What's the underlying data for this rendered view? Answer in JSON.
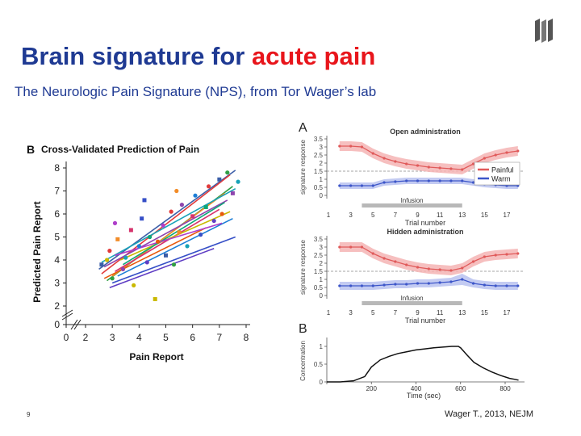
{
  "slide": {
    "title_main": "Brain signature for ",
    "title_accent": "acute pain",
    "subtitle": "The Neurologic Pain Signature (NPS), from Tor Wager’s lab",
    "page_number": "9",
    "citation": "Wager T., 2013, NEJM",
    "colors": {
      "title": "#1f3a93",
      "accent": "#e8151b"
    },
    "logo_icon": "university-logo-icon"
  },
  "chart_data": [
    {
      "id": "B",
      "type": "scatter",
      "panel_label": "B",
      "title": "Cross-Validated Prediction of Pain",
      "xlabel": "Pain Report",
      "ylabel": "Predicted Pain Report",
      "x_ticks": [
        "0",
        "2",
        "3",
        "4",
        "5",
        "6",
        "7",
        "8"
      ],
      "y_ticks": [
        "0",
        "2",
        "3",
        "4",
        "5",
        "6",
        "7",
        "8"
      ],
      "xlim": [
        2,
        8
      ],
      "ylim": [
        2,
        8
      ],
      "axis_break": true,
      "grid": false,
      "fit_lines": [
        {
          "color": "#3b5ea8",
          "x": [
            2.5,
            7.6
          ],
          "y": [
            3.6,
            7.9
          ]
        },
        {
          "color": "#e23a3a",
          "x": [
            2.6,
            7.4
          ],
          "y": [
            3.4,
            7.7
          ]
        },
        {
          "color": "#2f9e44",
          "x": [
            2.8,
            7.5
          ],
          "y": [
            3.1,
            7.2
          ]
        },
        {
          "color": "#f28c28",
          "x": [
            3.0,
            7.2
          ],
          "y": [
            3.3,
            6.9
          ]
        },
        {
          "color": "#8e44ad",
          "x": [
            2.7,
            7.3
          ],
          "y": [
            3.7,
            6.6
          ]
        },
        {
          "color": "#17a2b8",
          "x": [
            2.6,
            7.6
          ],
          "y": [
            3.9,
            7.1
          ]
        },
        {
          "color": "#d6336c",
          "x": [
            3.1,
            7.0
          ],
          "y": [
            3.5,
            6.2
          ]
        },
        {
          "color": "#c9b800",
          "x": [
            3.3,
            7.4
          ],
          "y": [
            4.0,
            6.1
          ]
        },
        {
          "color": "#1c7ed6",
          "x": [
            3.2,
            7.5
          ],
          "y": [
            3.3,
            5.8
          ]
        },
        {
          "color": "#364fc7",
          "x": [
            3.0,
            7.6
          ],
          "y": [
            3.0,
            5.0
          ]
        },
        {
          "color": "#5f3dc4",
          "x": [
            2.9,
            6.8
          ],
          "y": [
            2.8,
            4.5
          ]
        },
        {
          "color": "#0ca678",
          "x": [
            3.4,
            7.2
          ],
          "y": [
            3.8,
            6.5
          ]
        },
        {
          "color": "#e8590c",
          "x": [
            2.7,
            6.5
          ],
          "y": [
            3.2,
            5.4
          ]
        },
        {
          "color": "#ae3ec9",
          "x": [
            3.1,
            7.1
          ],
          "y": [
            4.2,
            5.6
          ]
        }
      ],
      "points": [
        {
          "x": 2.6,
          "y": 3.8,
          "color": "#3b5ea8"
        },
        {
          "x": 2.9,
          "y": 4.4,
          "color": "#e23a3a"
        },
        {
          "x": 3.0,
          "y": 3.2,
          "color": "#2f9e44"
        },
        {
          "x": 3.2,
          "y": 4.9,
          "color": "#f28c28"
        },
        {
          "x": 3.4,
          "y": 3.6,
          "color": "#8e44ad"
        },
        {
          "x": 3.5,
          "y": 4.1,
          "color": "#17a2b8"
        },
        {
          "x": 3.7,
          "y": 5.3,
          "color": "#d6336c"
        },
        {
          "x": 3.8,
          "y": 2.9,
          "color": "#c9b800"
        },
        {
          "x": 4.0,
          "y": 4.6,
          "color": "#1c7ed6"
        },
        {
          "x": 4.1,
          "y": 5.8,
          "color": "#364fc7"
        },
        {
          "x": 4.3,
          "y": 3.9,
          "color": "#5f3dc4"
        },
        {
          "x": 4.4,
          "y": 5.0,
          "color": "#0ca678"
        },
        {
          "x": 4.6,
          "y": 2.3,
          "color": "#c9b800"
        },
        {
          "x": 4.7,
          "y": 4.8,
          "color": "#e8590c"
        },
        {
          "x": 4.9,
          "y": 5.5,
          "color": "#ae3ec9"
        },
        {
          "x": 5.0,
          "y": 4.2,
          "color": "#3b5ea8"
        },
        {
          "x": 5.2,
          "y": 6.1,
          "color": "#e23a3a"
        },
        {
          "x": 5.3,
          "y": 3.8,
          "color": "#2f9e44"
        },
        {
          "x": 5.5,
          "y": 5.2,
          "color": "#f28c28"
        },
        {
          "x": 5.6,
          "y": 6.4,
          "color": "#8e44ad"
        },
        {
          "x": 5.8,
          "y": 4.6,
          "color": "#17a2b8"
        },
        {
          "x": 6.0,
          "y": 5.9,
          "color": "#d6336c"
        },
        {
          "x": 6.1,
          "y": 6.8,
          "color": "#1c7ed6"
        },
        {
          "x": 6.3,
          "y": 5.1,
          "color": "#364fc7"
        },
        {
          "x": 6.5,
          "y": 6.3,
          "color": "#0ca678"
        },
        {
          "x": 6.6,
          "y": 7.2,
          "color": "#e23a3a"
        },
        {
          "x": 6.8,
          "y": 5.7,
          "color": "#5f3dc4"
        },
        {
          "x": 7.0,
          "y": 7.5,
          "color": "#3b5ea8"
        },
        {
          "x": 7.1,
          "y": 6.0,
          "color": "#e8590c"
        },
        {
          "x": 7.3,
          "y": 7.8,
          "color": "#2f9e44"
        },
        {
          "x": 7.5,
          "y": 6.9,
          "color": "#8e44ad"
        },
        {
          "x": 3.1,
          "y": 5.6,
          "color": "#ae3ec9"
        },
        {
          "x": 2.8,
          "y": 4.0,
          "color": "#c9b800"
        },
        {
          "x": 4.2,
          "y": 6.6,
          "color": "#364fc7"
        },
        {
          "x": 5.4,
          "y": 7.0,
          "color": "#f28c28"
        },
        {
          "x": 7.7,
          "y": 7.4,
          "color": "#17a2b8"
        }
      ]
    },
    {
      "id": "A-open",
      "type": "line",
      "panel_label": "A",
      "title": "Open administration",
      "ylabel": "signature response",
      "y_ticks": [
        "3.5",
        "3",
        "2.5",
        "2",
        "1.5",
        "1",
        "0.5",
        "0"
      ],
      "x_ticks": [
        "1",
        "3",
        "5",
        "7",
        "9",
        "11",
        "13",
        "15",
        "17"
      ],
      "ylim": [
        0,
        3.5
      ],
      "xlim": [
        1,
        18
      ],
      "reference_line": 1.5,
      "infusion_label": "Infusion",
      "infusion_range": [
        4,
        13
      ],
      "legend": [
        {
          "label": "Painful",
          "color": "#e05a5a"
        },
        {
          "label": "Warm",
          "color": "#3d56c9"
        }
      ],
      "legend_position": "right",
      "series": [
        {
          "name": "Painful",
          "color": "#e05a5a",
          "band": "#f4b4b4",
          "x": [
            2,
            3,
            4,
            5,
            6,
            7,
            8,
            9,
            10,
            11,
            12,
            13,
            14,
            15,
            16,
            17,
            18
          ],
          "y": [
            3.05,
            3.05,
            3.0,
            2.6,
            2.3,
            2.1,
            1.95,
            1.85,
            1.75,
            1.7,
            1.65,
            1.6,
            1.95,
            2.3,
            2.5,
            2.65,
            2.75
          ],
          "err": [
            0.3,
            0.3,
            0.3,
            0.3,
            0.3,
            0.3,
            0.3,
            0.3,
            0.3,
            0.3,
            0.3,
            0.3,
            0.3,
            0.3,
            0.3,
            0.3,
            0.3
          ]
        },
        {
          "name": "Warm",
          "color": "#3d56c9",
          "band": "#b9c2f0",
          "x": [
            2,
            3,
            4,
            5,
            6,
            7,
            8,
            9,
            10,
            11,
            12,
            13,
            14,
            15,
            16,
            17,
            18
          ],
          "y": [
            0.6,
            0.6,
            0.6,
            0.6,
            0.8,
            0.85,
            0.9,
            0.9,
            0.9,
            0.9,
            0.9,
            0.9,
            0.8,
            0.7,
            0.65,
            0.6,
            0.6
          ],
          "err": [
            0.2,
            0.2,
            0.2,
            0.2,
            0.2,
            0.2,
            0.2,
            0.2,
            0.2,
            0.2,
            0.2,
            0.2,
            0.2,
            0.2,
            0.2,
            0.2,
            0.2
          ]
        }
      ]
    },
    {
      "id": "A-hidden",
      "type": "line",
      "title": "Hidden administration",
      "ylabel": "signature response",
      "y_ticks": [
        "3.5",
        "3",
        "2.5",
        "2",
        "1.5",
        "1",
        "0.5",
        "0"
      ],
      "x_ticks": [
        "1",
        "3",
        "5",
        "7",
        "9",
        "11",
        "13",
        "15",
        "17"
      ],
      "ylim": [
        0,
        3.5
      ],
      "xlim": [
        1,
        18
      ],
      "xlabel": "Trial number",
      "reference_line": 1.5,
      "infusion_label": "Infusion",
      "infusion_range": [
        4,
        13
      ],
      "series": [
        {
          "name": "Painful",
          "color": "#e05a5a",
          "band": "#f4b4b4",
          "x": [
            2,
            3,
            4,
            5,
            6,
            7,
            8,
            9,
            10,
            11,
            12,
            13,
            14,
            15,
            16,
            17,
            18
          ],
          "y": [
            3.0,
            3.0,
            3.0,
            2.6,
            2.3,
            2.1,
            1.9,
            1.75,
            1.65,
            1.6,
            1.55,
            1.7,
            2.1,
            2.4,
            2.5,
            2.55,
            2.6
          ],
          "err": [
            0.3,
            0.3,
            0.3,
            0.3,
            0.3,
            0.3,
            0.3,
            0.3,
            0.3,
            0.3,
            0.3,
            0.3,
            0.3,
            0.3,
            0.3,
            0.3,
            0.3
          ]
        },
        {
          "name": "Warm",
          "color": "#3d56c9",
          "band": "#b9c2f0",
          "x": [
            2,
            3,
            4,
            5,
            6,
            7,
            8,
            9,
            10,
            11,
            12,
            13,
            14,
            15,
            16,
            17,
            18
          ],
          "y": [
            0.6,
            0.6,
            0.6,
            0.6,
            0.65,
            0.7,
            0.7,
            0.75,
            0.75,
            0.8,
            0.85,
            1.0,
            0.75,
            0.65,
            0.6,
            0.6,
            0.6
          ],
          "err": [
            0.25,
            0.25,
            0.25,
            0.25,
            0.25,
            0.25,
            0.25,
            0.25,
            0.25,
            0.25,
            0.25,
            0.35,
            0.25,
            0.25,
            0.25,
            0.25,
            0.25
          ]
        }
      ]
    },
    {
      "id": "B-concentration",
      "type": "line",
      "panel_label": "B",
      "xlabel": "Time (sec)",
      "ylabel": "Concentration",
      "x_ticks": [
        "0",
        "200",
        "400",
        "600",
        "800"
      ],
      "y_ticks": [
        "1",
        "0.5",
        "0"
      ],
      "xlim": [
        0,
        870
      ],
      "ylim": [
        0,
        1.25
      ],
      "series": [
        {
          "name": "",
          "color": "#111111",
          "x": [
            0,
            60,
            120,
            170,
            200,
            240,
            280,
            320,
            360,
            400,
            440,
            480,
            520,
            560,
            590,
            600,
            630,
            660,
            700,
            740,
            780,
            820,
            860
          ],
          "y": [
            0,
            0,
            0.03,
            0.15,
            0.42,
            0.62,
            0.72,
            0.8,
            0.85,
            0.9,
            0.93,
            0.96,
            0.98,
            1.0,
            1.0,
            0.96,
            0.75,
            0.55,
            0.4,
            0.28,
            0.18,
            0.1,
            0.05
          ]
        }
      ]
    }
  ]
}
